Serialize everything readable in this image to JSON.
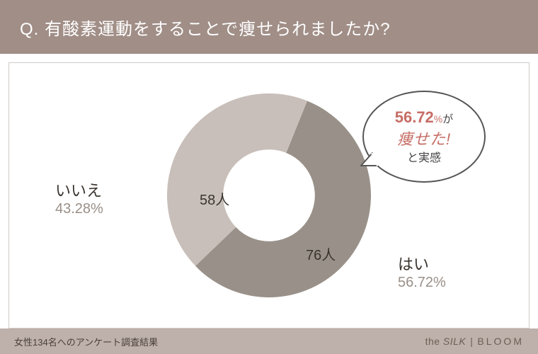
{
  "header": {
    "question": "Q. 有酸素運動をすることで痩せられましたか?"
  },
  "chart": {
    "type": "donut",
    "slices": [
      {
        "key": "yes",
        "label": "はい",
        "percent_text": "56.72%",
        "count_text": "76人",
        "value": 56.72,
        "color": "#999189"
      },
      {
        "key": "no",
        "label": "いいえ",
        "percent_text": "43.28%",
        "count_text": "58人",
        "value": 43.28,
        "color": "#c8bfba"
      }
    ],
    "inner_radius_ratio": 0.45,
    "outer_radius": 144,
    "background_color": "#ffffff",
    "frame_border_color": "#d0cbc7",
    "start_angle_deg": 22,
    "label_color": "#3a342f",
    "percent_label_color": "#9a8f88",
    "label_fontsize": 22,
    "percent_fontsize": 20,
    "count_fontsize": 20
  },
  "bubble": {
    "line1_percent": "56.72",
    "line1_unit": "%",
    "line1_suffix": "が",
    "line2": "痩せた!",
    "line3": "と実感",
    "border_color": "#555555",
    "accent_color": "#c66d65",
    "text_color": "#444444"
  },
  "footer": {
    "note": "女性134名へのアンケート調査結果",
    "brand_prefix": "the",
    "brand_silk": "SILK",
    "brand_bloom": "BLOOM",
    "bg_color": "#beb0aa",
    "header_bg_color": "#a08e87"
  }
}
